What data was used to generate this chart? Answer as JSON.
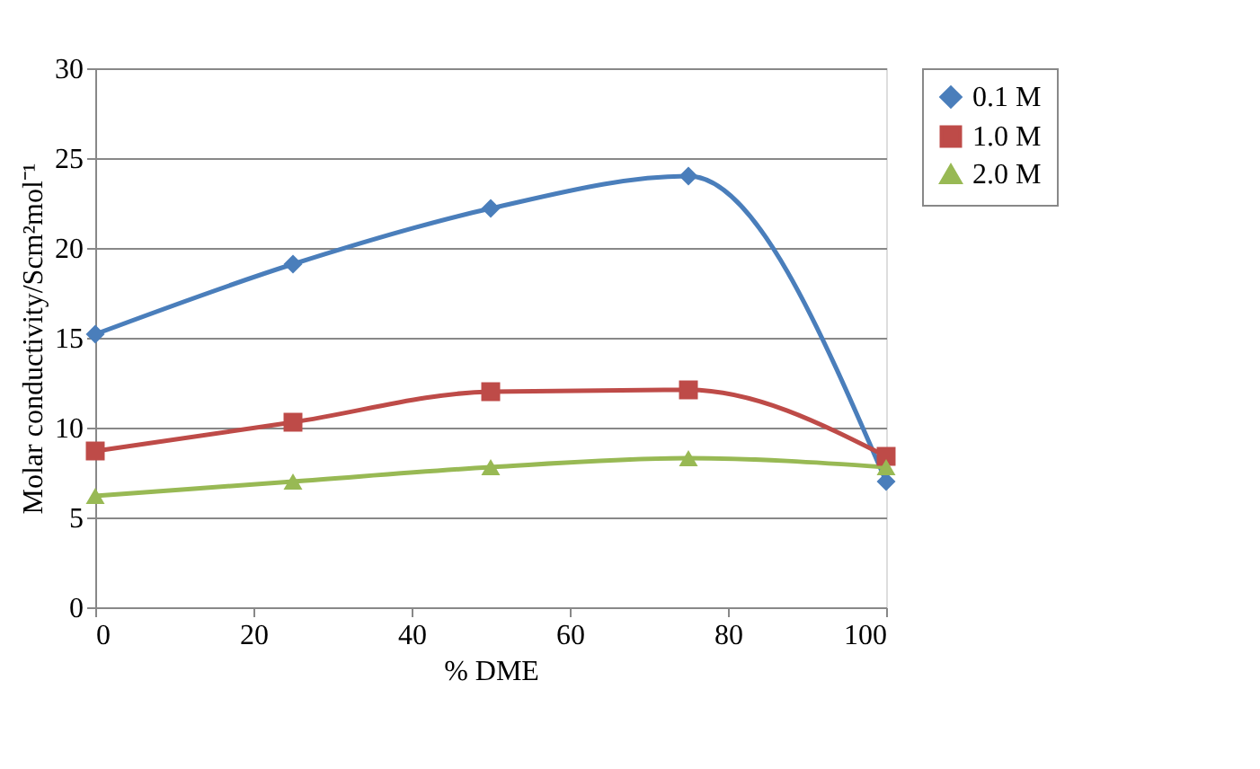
{
  "chart_data": {
    "type": "line",
    "xlabel": "% DME",
    "ylabel": "Molar conductivity/Scm²mol⁻¹",
    "x": [
      0,
      25,
      50,
      75,
      100
    ],
    "series": [
      {
        "name": "0.1 M",
        "color": "#4a7ebb",
        "marker": "diamond",
        "values": [
          15.2,
          19.1,
          22.2,
          24.0,
          7.0
        ]
      },
      {
        "name": "1.0 M",
        "color": "#be4b48",
        "marker": "square",
        "values": [
          8.7,
          10.3,
          12.0,
          12.1,
          8.4
        ]
      },
      {
        "name": "2.0 M",
        "color": "#98b954",
        "marker": "triangle",
        "values": [
          6.2,
          7.0,
          7.8,
          8.3,
          7.8
        ]
      }
    ],
    "xlim": [
      0,
      100
    ],
    "xticks": [
      0,
      20,
      40,
      60,
      80,
      100
    ],
    "ylim": [
      0,
      30
    ],
    "yticks": [
      0,
      5,
      10,
      15,
      20,
      25,
      30
    ],
    "grid": "y",
    "legend": "right",
    "line_style": "solid"
  }
}
